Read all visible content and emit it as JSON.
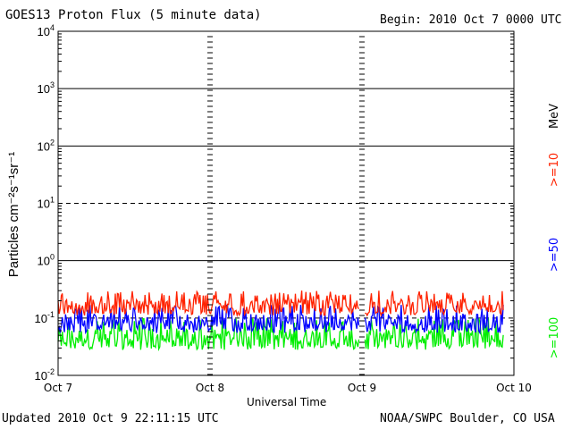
{
  "header": {
    "title": "GOES13 Proton Flux (5 minute data)",
    "begin": "Begin: 2010 Oct 7 0000 UTC"
  },
  "footer": {
    "updated": "Updated 2010 Oct  9 22:11:15 UTC",
    "source": "NOAA/SWPC Boulder, CO USA"
  },
  "chart_data": {
    "type": "line",
    "title": "GOES13 Proton Flux (5 minute data)",
    "xlabel": "Universal Time",
    "ylabel": "Particles cm⁻²s⁻¹sr⁻¹",
    "y_scale": "log",
    "ylim": [
      0.01,
      10000
    ],
    "y_ticks": [
      {
        "value": 0.01,
        "mantissa": "10",
        "exp": "-2"
      },
      {
        "value": 0.1,
        "mantissa": "10",
        "exp": "-1"
      },
      {
        "value": 1,
        "mantissa": "10",
        "exp": "0"
      },
      {
        "value": 10,
        "mantissa": "10",
        "exp": "1"
      },
      {
        "value": 100,
        "mantissa": "10",
        "exp": "2"
      },
      {
        "value": 1000,
        "mantissa": "10",
        "exp": "3"
      },
      {
        "value": 10000,
        "mantissa": "10",
        "exp": "4"
      }
    ],
    "x_ticks": [
      "Oct 7",
      "Oct 8",
      "Oct 9",
      "Oct 10"
    ],
    "xlim_days": [
      0,
      3
    ],
    "data_end_day": 2.93,
    "gap_day": 2.0,
    "grid": {
      "solid_decades": [
        0.01,
        1,
        100,
        1000
      ],
      "dashed_decades": [
        0.1,
        10
      ]
    },
    "unit_label": "MeV",
    "series": [
      {
        "name": ">=10",
        "color": "#ff2200",
        "baseline": 0.16,
        "low": 0.11,
        "high": 0.3
      },
      {
        "name": ">=50",
        "color": "#0000ff",
        "baseline": 0.085,
        "low": 0.055,
        "high": 0.17
      },
      {
        "name": ">=100",
        "color": "#00ee00",
        "baseline": 0.045,
        "low": 0.028,
        "high": 0.1
      }
    ]
  }
}
